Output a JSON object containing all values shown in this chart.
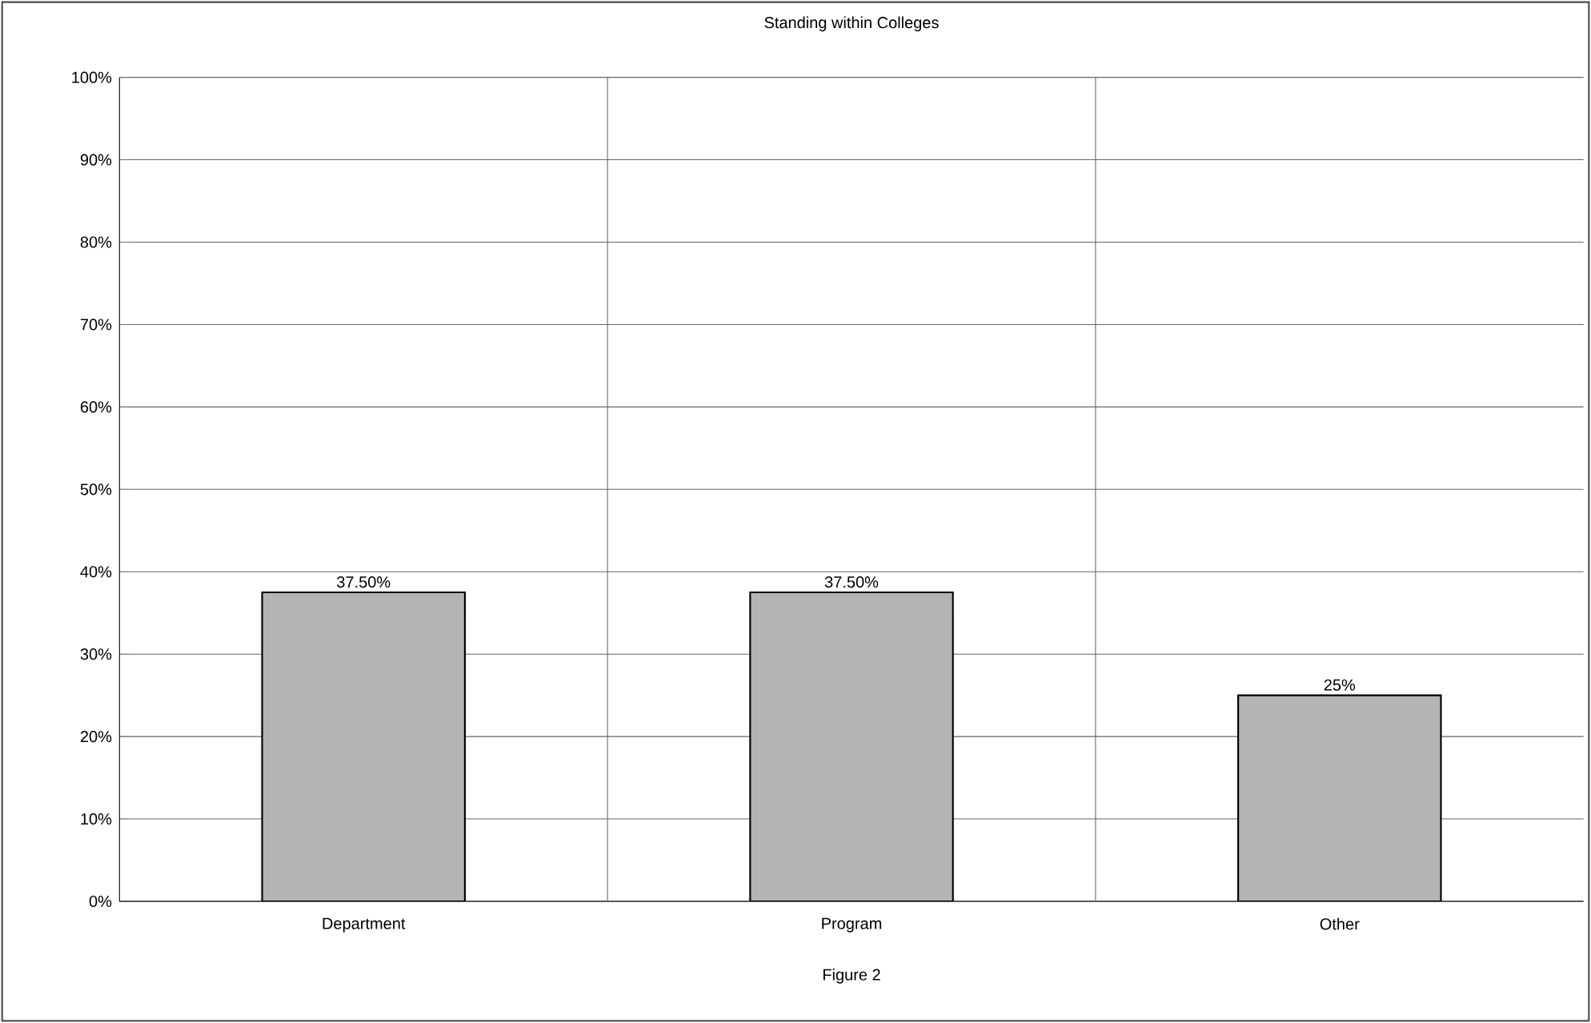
{
  "chart_data": {
    "type": "bar",
    "title": "Standing within Colleges",
    "categories": [
      "Department",
      "Program",
      "Other"
    ],
    "values": [
      37.5,
      37.5,
      25
    ],
    "value_labels": [
      "37.50%",
      "37.50%",
      "25%"
    ],
    "color": "#b4b4b4",
    "ylim": [
      0,
      100
    ],
    "yticks": [
      {
        "value": 0,
        "label": "0%"
      },
      {
        "value": 10,
        "label": "10%"
      },
      {
        "value": 20,
        "label": "20%"
      },
      {
        "value": 30,
        "label": "30%"
      },
      {
        "value": 40,
        "label": "40%"
      },
      {
        "value": 50,
        "label": "50%"
      },
      {
        "value": 60,
        "label": "60%"
      },
      {
        "value": 70,
        "label": "70%"
      },
      {
        "value": 80,
        "label": "80%"
      },
      {
        "value": 90,
        "label": "90%"
      },
      {
        "value": 100,
        "label": "100%"
      }
    ],
    "grid": true,
    "annotations": [
      "Figure 2"
    ]
  }
}
